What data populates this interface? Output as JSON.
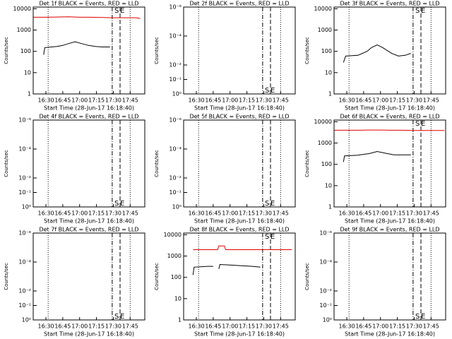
{
  "chart_data": [
    {
      "type": "line",
      "title": "Det 1f BLACK = Events, RED = LLD",
      "ylabel": "Counts/sec",
      "xlabel": "Start Time (28-Jun-17 16:18:40)",
      "log_y": true,
      "xlim": [
        978.67,
        1078
      ],
      "xticks": [
        {
          "value": 990,
          "label": "16:30"
        },
        {
          "value": 1005,
          "label": "16:45"
        },
        {
          "value": 1020,
          "label": "17:00"
        },
        {
          "value": 1035,
          "label": "17:15"
        },
        {
          "value": 1050,
          "label": "17:30"
        },
        {
          "value": 1065,
          "label": "17:45"
        }
      ],
      "ylim": [
        1,
        12000
      ],
      "yticks": [
        1,
        10,
        100,
        1000,
        10000
      ],
      "vlines": [
        {
          "x": 992,
          "style": "dotted"
        },
        {
          "x": 1049,
          "style": "dashdot"
        },
        {
          "x": 1056,
          "style": "dashed"
        },
        {
          "x": 1065,
          "style": "dotted"
        }
      ],
      "annotations": [
        {
          "text": "S",
          "x": 1053,
          "y": 10000
        },
        {
          "text": "E",
          "x": 1058,
          "y": 10000
        }
      ],
      "series": [
        {
          "color": "#000000",
          "x": [
            988,
            989,
            995,
            1000,
            1005,
            1010,
            1016,
            1022,
            1028,
            1034,
            1040,
            1047
          ],
          "values": [
            70,
            150,
            160,
            170,
            190,
            230,
            280,
            230,
            190,
            170,
            160,
            160
          ]
        },
        {
          "color": "#e00000",
          "x": [
            979,
            990,
            1000,
            1010,
            1020,
            1030,
            1040,
            1050,
            1060,
            1070,
            1074
          ],
          "values": [
            4000,
            4000,
            4100,
            4200,
            4000,
            4000,
            3900,
            3800,
            3800,
            3800,
            3500
          ]
        }
      ]
    },
    {
      "type": "line",
      "title": "Det 2f BLACK = Events, RED = LLD",
      "ylabel": "Counts/sec",
      "xlabel": "Start Time (28-Jun-17 16:18:40)",
      "log_y": true,
      "xlim": [
        978.67,
        1078
      ],
      "xticks": [
        {
          "value": 990,
          "label": "16:30"
        },
        {
          "value": 1005,
          "label": "16:45"
        },
        {
          "value": 1020,
          "label": "17:00"
        },
        {
          "value": 1035,
          "label": "17:15"
        },
        {
          "value": 1050,
          "label": "17:30"
        },
        {
          "value": 1065,
          "label": "17:45"
        }
      ],
      "ylim": [
        1,
        1e-06
      ],
      "yticks": [
        {
          "value": 1,
          "label": "10⁰"
        },
        {
          "value": 0.1,
          "label": "10⁻¹"
        },
        {
          "value": 0.01,
          "label": "10⁻²"
        },
        {
          "value": 0.0001,
          "label": "10⁻⁴"
        },
        {
          "value": 1e-06,
          "label": "10⁻⁶"
        }
      ],
      "vlines": [
        {
          "x": 992,
          "style": "dotted"
        },
        {
          "x": 1049,
          "style": "dashdot"
        },
        {
          "x": 1056,
          "style": "dashed"
        },
        {
          "x": 1065,
          "style": "dotted"
        }
      ],
      "annotations": [
        {
          "text": "S",
          "x": 1053,
          "y": 1
        },
        {
          "text": "E",
          "x": 1058,
          "y": 1
        }
      ],
      "series": []
    },
    {
      "type": "line",
      "title": "Det 3f BLACK = Events, RED = LLD",
      "ylabel": "Counts/sec",
      "xlabel": "Start Time (28-Jun-17 16:18:40)",
      "log_y": true,
      "xlim": [
        978.67,
        1078
      ],
      "xticks": [
        {
          "value": 990,
          "label": "16:30"
        },
        {
          "value": 1005,
          "label": "16:45"
        },
        {
          "value": 1020,
          "label": "17:00"
        },
        {
          "value": 1035,
          "label": "17:15"
        },
        {
          "value": 1050,
          "label": "17:30"
        },
        {
          "value": 1065,
          "label": "17:45"
        }
      ],
      "ylim": [
        1,
        12000
      ],
      "yticks": [
        1,
        10,
        100,
        1000,
        10000
      ],
      "vlines": [
        {
          "x": 992,
          "style": "dotted"
        },
        {
          "x": 1049,
          "style": "dashdot"
        },
        {
          "x": 1056,
          "style": "dashed"
        },
        {
          "x": 1065,
          "style": "dotted"
        }
      ],
      "annotations": [
        {
          "text": "S",
          "x": 1053,
          "y": 10000
        },
        {
          "text": "E",
          "x": 1058,
          "y": 10000
        }
      ],
      "series": [
        {
          "color": "#000000",
          "x": [
            987,
            989,
            1000,
            1008,
            1012,
            1017,
            1022,
            1030,
            1036,
            1042,
            1047
          ],
          "values": [
            30,
            60,
            65,
            100,
            150,
            200,
            150,
            80,
            60,
            65,
            80
          ]
        }
      ]
    },
    {
      "type": "line",
      "title": "Det 4f BLACK = Events, RED = LLD",
      "ylabel": "Counts/sec",
      "xlabel": "Start Time (28-Jun-17 16:18:40)",
      "log_y": true,
      "xlim": [
        978.67,
        1078
      ],
      "xticks": [
        {
          "value": 990,
          "label": "16:30"
        },
        {
          "value": 1005,
          "label": "16:45"
        },
        {
          "value": 1020,
          "label": "17:00"
        },
        {
          "value": 1035,
          "label": "17:15"
        },
        {
          "value": 1050,
          "label": "17:30"
        },
        {
          "value": 1065,
          "label": "17:45"
        }
      ],
      "ylim": [
        1,
        1e-06
      ],
      "yticks": [
        {
          "value": 1,
          "label": "10⁰"
        },
        {
          "value": 0.1,
          "label": "10⁻¹"
        },
        {
          "value": 0.01,
          "label": "10⁻²"
        },
        {
          "value": 0.0001,
          "label": "10⁻⁴"
        },
        {
          "value": 1e-06,
          "label": "10⁻⁶"
        }
      ],
      "vlines": [
        {
          "x": 992,
          "style": "dotted"
        },
        {
          "x": 1049,
          "style": "dashdot"
        },
        {
          "x": 1056,
          "style": "dashed"
        },
        {
          "x": 1065,
          "style": "dotted"
        }
      ],
      "annotations": [
        {
          "text": "S",
          "x": 1053,
          "y": 1
        },
        {
          "text": "E",
          "x": 1058,
          "y": 1
        }
      ],
      "series": []
    },
    {
      "type": "line",
      "title": "Det 5f BLACK = Events, RED = LLD",
      "ylabel": "Counts/sec",
      "xlabel": "Start Time (28-Jun-17 16:18:40)",
      "log_y": true,
      "xlim": [
        978.67,
        1078
      ],
      "xticks": [
        {
          "value": 990,
          "label": "16:30"
        },
        {
          "value": 1005,
          "label": "16:45"
        },
        {
          "value": 1020,
          "label": "17:00"
        },
        {
          "value": 1035,
          "label": "17:15"
        },
        {
          "value": 1050,
          "label": "17:30"
        },
        {
          "value": 1065,
          "label": "17:45"
        }
      ],
      "ylim": [
        1,
        1e-06
      ],
      "yticks": [
        {
          "value": 1,
          "label": "10⁰"
        },
        {
          "value": 0.1,
          "label": "10⁻¹"
        },
        {
          "value": 0.01,
          "label": "10⁻²"
        },
        {
          "value": 0.0001,
          "label": "10⁻⁴"
        },
        {
          "value": 1e-06,
          "label": "10⁻⁶"
        }
      ],
      "vlines": [
        {
          "x": 992,
          "style": "dotted"
        },
        {
          "x": 1049,
          "style": "dashdot"
        },
        {
          "x": 1056,
          "style": "dashed"
        },
        {
          "x": 1065,
          "style": "dotted"
        }
      ],
      "annotations": [
        {
          "text": "S",
          "x": 1053,
          "y": 1
        },
        {
          "text": "E",
          "x": 1058,
          "y": 1
        }
      ],
      "series": []
    },
    {
      "type": "line",
      "title": "Det 6f BLACK = Events, RED = LLD",
      "ylabel": "Counts/sec",
      "xlabel": "Start Time (28-Jun-17 16:18:40)",
      "log_y": true,
      "xlim": [
        978.67,
        1078
      ],
      "xticks": [
        {
          "value": 990,
          "label": "16:30"
        },
        {
          "value": 1005,
          "label": "16:45"
        },
        {
          "value": 1020,
          "label": "17:00"
        },
        {
          "value": 1035,
          "label": "17:15"
        },
        {
          "value": 1050,
          "label": "17:30"
        },
        {
          "value": 1065,
          "label": "17:45"
        }
      ],
      "ylim": [
        1,
        12000
      ],
      "yticks": [
        1,
        10,
        100,
        1000,
        10000
      ],
      "vlines": [
        {
          "x": 992,
          "style": "dotted"
        },
        {
          "x": 1049,
          "style": "dashdot"
        },
        {
          "x": 1056,
          "style": "dashed"
        },
        {
          "x": 1065,
          "style": "dotted"
        }
      ],
      "annotations": [
        {
          "text": "S",
          "x": 1053,
          "y": 10000
        },
        {
          "text": "E",
          "x": 1058,
          "y": 10000
        }
      ],
      "series": [
        {
          "color": "#000000",
          "x": [
            987,
            988,
            1000,
            1010,
            1017,
            1025,
            1032,
            1047
          ],
          "values": [
            130,
            250,
            270,
            320,
            400,
            330,
            280,
            280
          ]
        },
        {
          "color": "#e00000",
          "x": [
            979,
            990,
            1000,
            1010,
            1020,
            1030,
            1040,
            1050,
            1060,
            1070,
            1077
          ],
          "values": [
            4000,
            4000,
            4000,
            4100,
            4100,
            4000,
            4000,
            3900,
            3900,
            3900,
            3900
          ]
        }
      ]
    },
    {
      "type": "line",
      "title": "Det 7f BLACK = Events, RED = LLD",
      "ylabel": "Counts/sec",
      "xlabel": "Start Time (28-Jun-17 16:18:40)",
      "log_y": true,
      "xlim": [
        978.67,
        1078
      ],
      "xticks": [
        {
          "value": 990,
          "label": "16:30"
        },
        {
          "value": 1005,
          "label": "16:45"
        },
        {
          "value": 1020,
          "label": "17:00"
        },
        {
          "value": 1035,
          "label": "17:15"
        },
        {
          "value": 1050,
          "label": "17:30"
        },
        {
          "value": 1065,
          "label": "17:45"
        }
      ],
      "ylim": [
        1,
        1e-06
      ],
      "yticks": [
        {
          "value": 1,
          "label": "10⁰"
        },
        {
          "value": 0.1,
          "label": "10⁻¹"
        },
        {
          "value": 0.01,
          "label": "10⁻²"
        },
        {
          "value": 0.0001,
          "label": "10⁻⁴"
        },
        {
          "value": 1e-06,
          "label": "10⁻⁶"
        }
      ],
      "vlines": [
        {
          "x": 992,
          "style": "dotted"
        },
        {
          "x": 1049,
          "style": "dashdot"
        },
        {
          "x": 1056,
          "style": "dashed"
        },
        {
          "x": 1065,
          "style": "dotted"
        }
      ],
      "annotations": [
        {
          "text": "S",
          "x": 1053,
          "y": 1
        },
        {
          "text": "E",
          "x": 1058,
          "y": 1
        }
      ],
      "series": []
    },
    {
      "type": "line",
      "title": "Det 8f BLACK = Events, RED = LLD",
      "ylabel": "Counts/sec",
      "xlabel": "Start Time (28-Jun-17 16:18:40)",
      "log_y": true,
      "xlim": [
        978.67,
        1078
      ],
      "xticks": [
        {
          "value": 990,
          "label": "16:30"
        },
        {
          "value": 1005,
          "label": "16:45"
        },
        {
          "value": 1020,
          "label": "17:00"
        },
        {
          "value": 1035,
          "label": "17:15"
        },
        {
          "value": 1050,
          "label": "17:30"
        },
        {
          "value": 1065,
          "label": "17:45"
        }
      ],
      "ylim": [
        1,
        12000
      ],
      "yticks": [
        1,
        10,
        100,
        1000,
        10000
      ],
      "vlines": [
        {
          "x": 992,
          "style": "dotted"
        },
        {
          "x": 1049,
          "style": "dashdot"
        },
        {
          "x": 1056,
          "style": "dashed"
        },
        {
          "x": 1065,
          "style": "dotted"
        }
      ],
      "annotations": [
        {
          "text": "S",
          "x": 1053,
          "y": 10000
        },
        {
          "text": "E",
          "x": 1058,
          "y": 10000
        }
      ],
      "series": [
        {
          "color": "#000000",
          "x": [
            987,
            988,
            1000,
            1005,
            1009,
            1010,
            1011,
            1020,
            1030,
            1040,
            1047
          ],
          "values": [
            130,
            300,
            330,
            330,
            null,
            250,
            400,
            380,
            350,
            330,
            300
          ]
        },
        {
          "color": "#e00000",
          "x": [
            987,
            1000,
            1009,
            1010,
            1015,
            1016,
            1030,
            1045,
            1060,
            1075
          ],
          "values": [
            2000,
            2000,
            2000,
            3000,
            3000,
            2000,
            2000,
            2000,
            2000,
            2000
          ]
        }
      ]
    },
    {
      "type": "line",
      "title": "Det 9f BLACK = Events, RED = LLD",
      "ylabel": "Counts/sec",
      "xlabel": "Start Time (28-Jun-17 16:18:40)",
      "log_y": true,
      "xlim": [
        978.67,
        1078
      ],
      "xticks": [
        {
          "value": 990,
          "label": "16:30"
        },
        {
          "value": 1005,
          "label": "16:45"
        },
        {
          "value": 1020,
          "label": "17:00"
        },
        {
          "value": 1035,
          "label": "17:15"
        },
        {
          "value": 1050,
          "label": "17:30"
        },
        {
          "value": 1065,
          "label": "17:45"
        }
      ],
      "ylim": [
        1,
        1e-06
      ],
      "yticks": [
        {
          "value": 1,
          "label": "10⁰"
        },
        {
          "value": 0.1,
          "label": "10⁻¹"
        },
        {
          "value": 0.01,
          "label": "10⁻²"
        },
        {
          "value": 0.0001,
          "label": "10⁻⁴"
        },
        {
          "value": 1e-06,
          "label": "10⁻⁶"
        }
      ],
      "vlines": [
        {
          "x": 992,
          "style": "dotted"
        },
        {
          "x": 1049,
          "style": "dashdot"
        },
        {
          "x": 1056,
          "style": "dashed"
        },
        {
          "x": 1065,
          "style": "dotted"
        }
      ],
      "annotations": [
        {
          "text": "S",
          "x": 1053,
          "y": 1
        },
        {
          "text": "E",
          "x": 1058,
          "y": 1
        }
      ],
      "series": []
    }
  ]
}
